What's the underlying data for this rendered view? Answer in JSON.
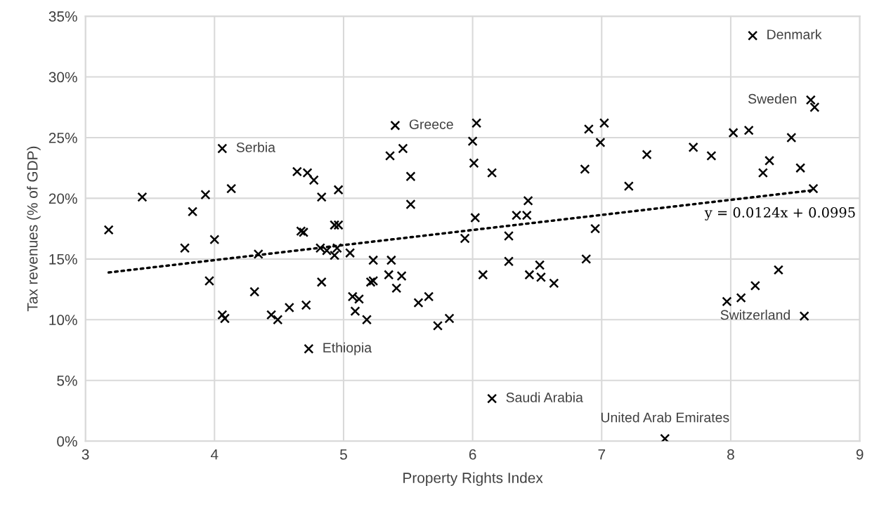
{
  "chart_data": {
    "type": "scatter",
    "xlabel": "Property Rights Index",
    "ylabel": "Tax revenues (% of GDP)",
    "xlim": [
      3,
      9
    ],
    "xticks": [
      3,
      4,
      5,
      6,
      7,
      8,
      9
    ],
    "ylim": [
      0,
      35
    ],
    "yticks": [
      {
        "value": 0,
        "label": "0%"
      },
      {
        "value": 5,
        "label": "5%"
      },
      {
        "value": 10,
        "label": "10%"
      },
      {
        "value": 15,
        "label": "15%"
      },
      {
        "value": 20,
        "label": "20%"
      },
      {
        "value": 25,
        "label": "25%"
      },
      {
        "value": 30,
        "label": "30%"
      },
      {
        "value": 35,
        "label": "35%"
      }
    ],
    "grid": true,
    "legend": false,
    "series": [
      {
        "color": "#000000",
        "marker": "cross",
        "x": [
          3.18,
          3.44,
          4.06,
          3.93,
          3.83,
          4.13,
          3.77,
          4.0,
          4.34,
          3.96,
          4.31,
          4.06,
          4.08,
          4.44,
          4.49,
          4.58,
          4.71,
          4.83,
          4.64,
          4.72,
          4.77,
          4.83,
          4.96,
          4.67,
          4.69,
          4.93,
          4.96,
          4.82,
          4.87,
          4.95,
          4.93,
          4.73,
          5.4,
          5.36,
          5.46,
          5.52,
          5.52,
          6.03,
          6.0,
          6.01,
          6.15,
          6.02,
          5.94,
          5.05,
          5.23,
          5.37,
          5.35,
          5.45,
          5.21,
          5.23,
          5.41,
          5.07,
          5.12,
          5.09,
          5.18,
          5.58,
          5.66,
          5.73,
          5.82,
          6.08,
          6.28,
          6.28,
          6.34,
          6.42,
          6.43,
          6.44,
          6.52,
          6.53,
          6.63,
          6.9,
          7.02,
          6.99,
          6.87,
          6.95,
          6.88,
          6.15,
          8.17,
          8.62,
          8.65,
          7.35,
          7.21,
          7.71,
          7.85,
          8.02,
          8.14,
          8.47,
          8.3,
          8.25,
          8.54,
          8.64,
          8.37,
          8.19,
          8.08,
          7.97,
          8.57,
          7.49
        ],
        "values": [
          17.4,
          20.1,
          24.1,
          20.3,
          18.9,
          20.8,
          15.9,
          16.6,
          15.4,
          13.2,
          12.3,
          10.4,
          10.1,
          10.4,
          10.0,
          11.0,
          11.2,
          13.1,
          22.2,
          22.1,
          21.5,
          20.1,
          20.7,
          17.3,
          17.2,
          17.8,
          17.8,
          15.9,
          15.7,
          15.9,
          15.3,
          7.6,
          26.0,
          23.5,
          24.1,
          21.8,
          19.5,
          26.2,
          24.7,
          22.9,
          22.1,
          18.4,
          16.7,
          15.5,
          14.9,
          14.9,
          13.7,
          13.6,
          13.1,
          13.2,
          12.6,
          11.9,
          11.7,
          10.7,
          10.0,
          11.4,
          11.9,
          9.5,
          10.1,
          13.7,
          16.9,
          14.8,
          18.6,
          18.6,
          19.8,
          13.7,
          14.5,
          13.5,
          13.0,
          25.7,
          26.2,
          24.6,
          22.4,
          17.5,
          15.0,
          3.5,
          33.4,
          28.1,
          27.5,
          23.6,
          21.0,
          24.2,
          23.5,
          25.4,
          25.6,
          25.0,
          23.1,
          22.1,
          22.5,
          20.8,
          14.1,
          12.8,
          11.8,
          11.5,
          10.3,
          0.2
        ]
      },
      {
        "type": "line",
        "color": "#000000",
        "line_style": "dotted",
        "x": [
          3.18,
          8.65
        ],
        "values": [
          13.89,
          20.68
        ]
      }
    ],
    "annotations": [
      {
        "text": "Serbia",
        "x": 4.06,
        "y": 24.1
      },
      {
        "text": "Greece",
        "x": 5.4,
        "y": 26.0
      },
      {
        "text": "Ethiopia",
        "x": 4.73,
        "y": 7.6
      },
      {
        "text": "Saudi Arabia",
        "x": 6.15,
        "y": 3.5
      },
      {
        "text": "United Arab Emirates",
        "x": 7.49,
        "y": 0.2
      },
      {
        "text": "Denmark",
        "x": 8.17,
        "y": 33.4
      },
      {
        "text": "Sweden",
        "x": 8.62,
        "y": 28.1
      },
      {
        "text": "Switzerland",
        "x": 8.57,
        "y": 10.3
      },
      "y = 0.0124x + 0.0995"
    ]
  }
}
